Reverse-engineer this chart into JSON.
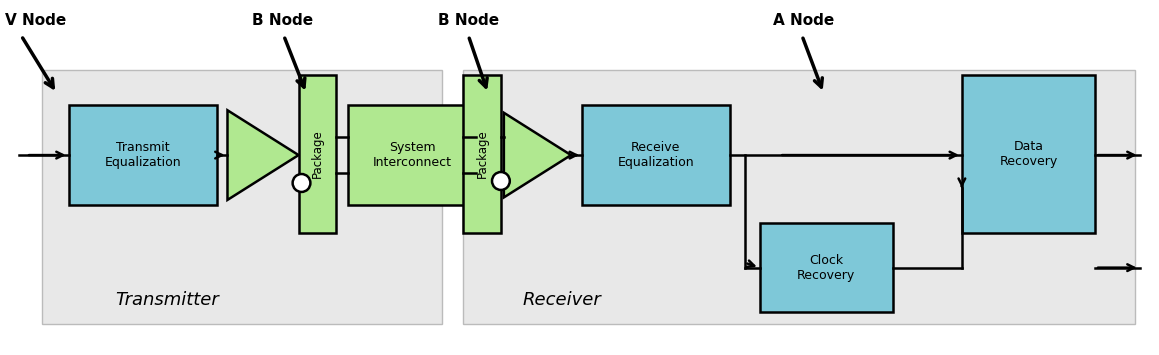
{
  "fig_width": 11.59,
  "fig_height": 3.55,
  "bg_color": "#ffffff",
  "panel_bg": "#e8e8e8",
  "blue_box_color": "#7ec8d8",
  "green_box_color": "#b0e890",
  "border_color": "#000000",
  "transmitter_label": "Transmitter",
  "receiver_label": "Receiver",
  "node_labels": [
    "V Node",
    "B Node",
    "B Node",
    "A Node"
  ]
}
